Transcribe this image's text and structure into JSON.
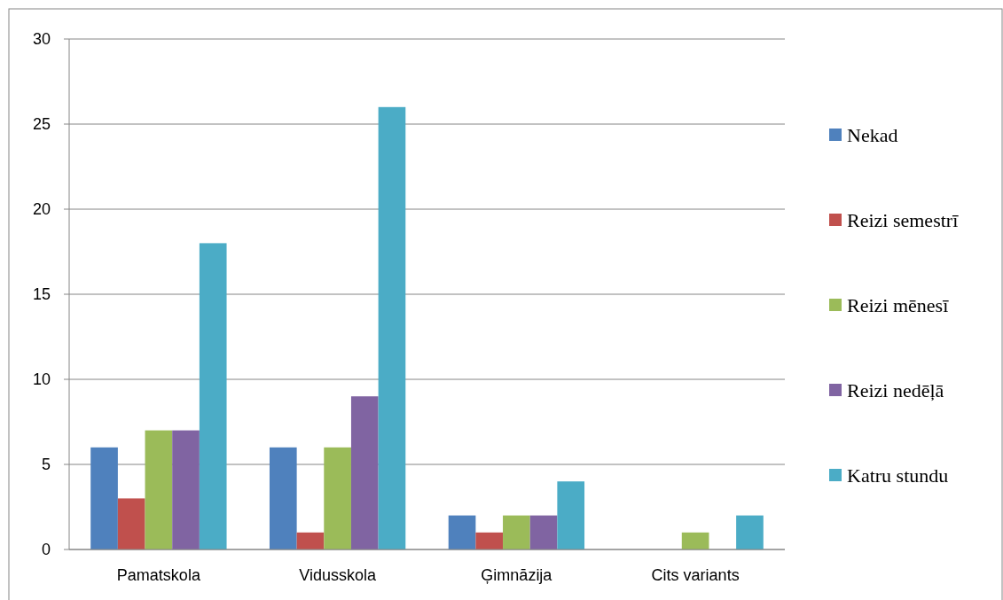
{
  "chart_data": {
    "type": "bar",
    "categories": [
      "Pamatskola",
      "Vidusskola",
      "Ģimnāzija",
      "Cits variants"
    ],
    "series": [
      {
        "name": "Nekad",
        "color": "#4f81bd",
        "values": [
          6,
          6,
          2,
          0
        ]
      },
      {
        "name": "Reizi semestrī",
        "color": "#c0504d",
        "values": [
          3,
          1,
          1,
          0
        ]
      },
      {
        "name": "Reizi mēnesī",
        "color": "#9bbb59",
        "values": [
          7,
          6,
          2,
          1
        ]
      },
      {
        "name": "Reizi nedēļā",
        "color": "#8064a2",
        "values": [
          7,
          9,
          2,
          0
        ]
      },
      {
        "name": "Katru stundu",
        "color": "#4bacc6",
        "values": [
          18,
          26,
          4,
          2
        ]
      }
    ],
    "ylim": [
      0,
      30
    ],
    "yticks": [
      0,
      5,
      10,
      15,
      20,
      25,
      30
    ],
    "grid": "y",
    "legend": "right"
  }
}
